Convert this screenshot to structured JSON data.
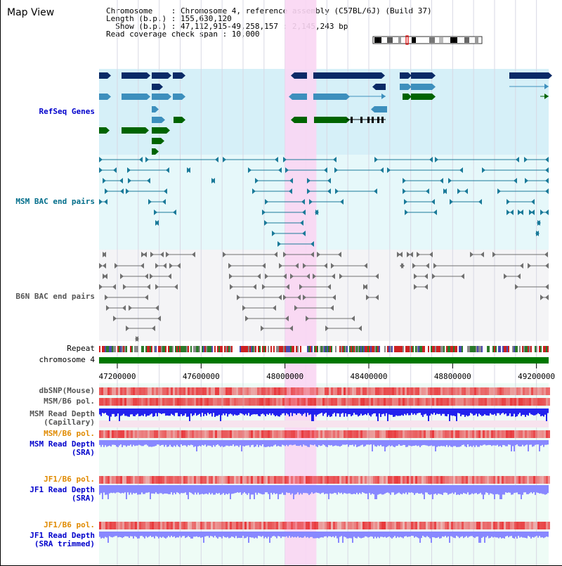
{
  "title": "Map View",
  "header": {
    "line1": "Chromosome    : Chromosome 4, reference assembly (C57BL/6J) (Build 37)",
    "line2": "Length (b.p.) : 155,630,120",
    "line3": "  Show (b.p.) : 47,112,915-49,258,157 : 2,145,243 bp",
    "line4": "Read coverage check span : 10,000"
  },
  "tracks": {
    "refseq": "RefSeq Genes",
    "msm_bac": "MSM BAC end pairs",
    "b6n_bac": "B6N BAC end pairs",
    "repeat": "Repeat",
    "chromosome": "chromosome 4",
    "dbsnp": "dbSNP(Mouse)",
    "msm_b6_pol_1": "MSM/B6 pol.",
    "msm_depth_cap_1": "MSM Read Depth",
    "msm_depth_cap_2": "(Capillary)",
    "msm_b6_pol_2": "MSM/B6 pol.",
    "msm_depth_sra_1": "MSM Read Depth",
    "msm_depth_sra_2": "(SRA)",
    "jf1_b6_pol_1": "JF1/B6 pol.",
    "jf1_depth_sra_1": "JF1 Read Depth",
    "jf1_depth_sra_2": "(SRA)",
    "jf1_b6_pol_2": "JF1/B6 pol.",
    "jf1_depth_trim_1": "JF1 Read Depth",
    "jf1_depth_trim_2": "(SRA trimmed)"
  },
  "axis": {
    "start": 47112915,
    "end": 49258157,
    "ticks": [
      "47200000",
      "47600000",
      "48000000",
      "48400000",
      "48800000",
      "49200000"
    ],
    "tick_values": [
      47200000,
      47600000,
      48000000,
      48400000,
      48800000,
      49200000
    ],
    "highlight_region": [
      48000000,
      48150000
    ]
  },
  "colors": {
    "refseq_bg": "#d6f0f8",
    "msm_bg": "#e6f8fa",
    "b6n_bg": "#f4f4f6",
    "highlight": "#f9d6f3",
    "refseq_dark": "#0a2a66",
    "refseq_light": "#3d8fbd",
    "refseq_green": "#006400",
    "msm_line": "#1a7a99",
    "b6n_line": "#707070",
    "chromosome": "#007700",
    "snp": "#e8383b",
    "depth_dark": "#2222ee",
    "depth_light": "#8888ff",
    "label_blue": "#0000cc",
    "label_teal": "#006d8a",
    "label_orange": "#e08a00",
    "label_gray": "#555555"
  }
}
